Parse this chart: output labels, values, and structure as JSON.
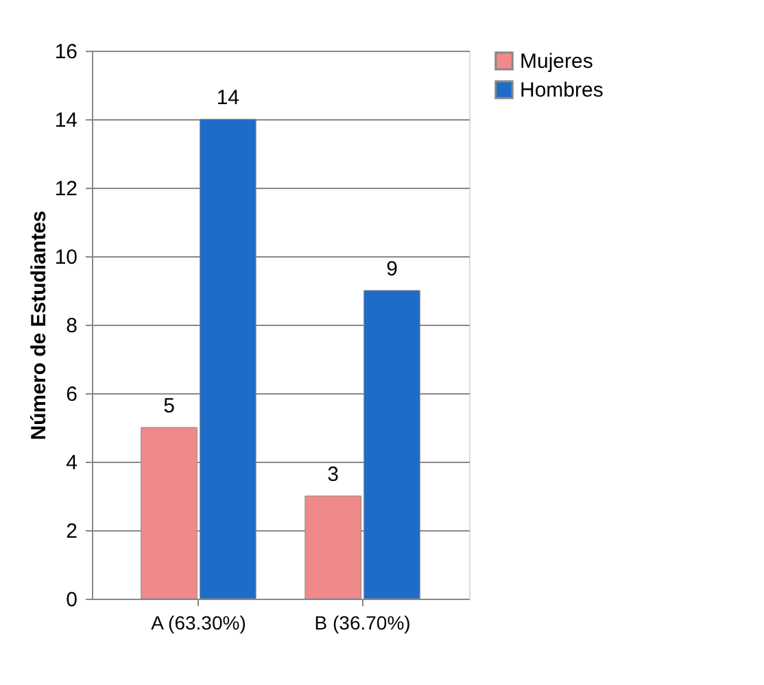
{
  "chart_data": {
    "type": "bar",
    "ylabel": "Número de Estudiantes",
    "categories": [
      "A (63.30%)",
      "B (36.70%)"
    ],
    "series": [
      {
        "name": "Mujeres",
        "color": "#f08a8a",
        "values": [
          5,
          3
        ]
      },
      {
        "name": "Hombres",
        "color": "#1f6cc8",
        "values": [
          14,
          9
        ]
      }
    ],
    "ylim": [
      0,
      16
    ],
    "yticks": [
      0,
      2,
      4,
      6,
      8,
      10,
      12,
      14,
      16
    ],
    "grid": "y",
    "legend": "right",
    "data_labels": true
  }
}
